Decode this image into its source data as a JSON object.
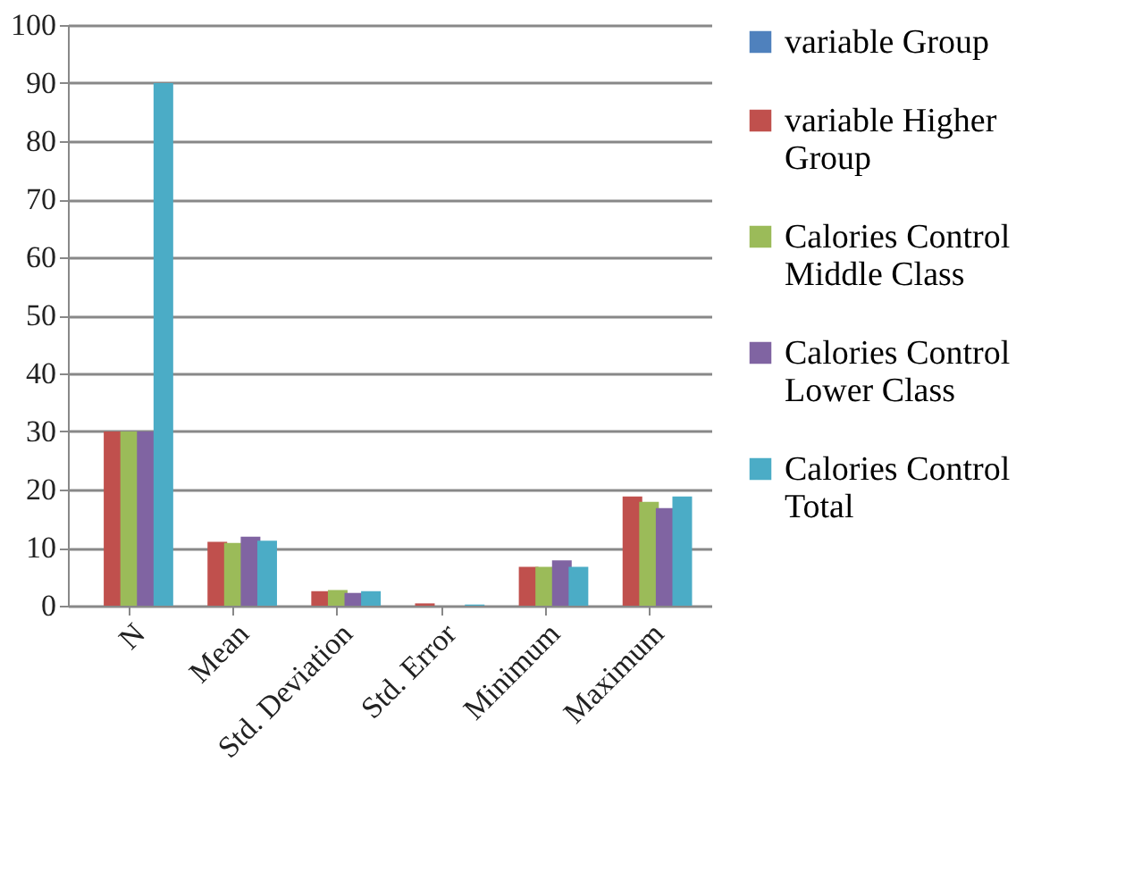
{
  "chart_data": {
    "type": "bar",
    "categories": [
      "N",
      "Mean",
      "Std. Deviation",
      "Std. Error",
      "Minimum",
      "Maximum"
    ],
    "series": [
      {
        "name": "variable Group",
        "color": "#4f81bd",
        "values": [
          null,
          null,
          null,
          null,
          null,
          null
        ]
      },
      {
        "name": "variable Higher Group",
        "color": "#c0504d",
        "values": [
          30,
          11,
          2.5,
          0.4,
          6.7,
          18.8
        ]
      },
      {
        "name": "Calories Control Middle Class",
        "color": "#9bbb59",
        "values": [
          30,
          10.8,
          2.7,
          null,
          6.7,
          17.9
        ]
      },
      {
        "name": "Calories Control Lower Class",
        "color": "#8064a2",
        "values": [
          30,
          11.9,
          2.2,
          null,
          7.8,
          16.8
        ]
      },
      {
        "name": "Calories Control Total",
        "color": "#4bacc6",
        "values": [
          90,
          11.2,
          2.5,
          0.2,
          6.7,
          18.8
        ]
      }
    ],
    "ylim": [
      0,
      100
    ],
    "yticks": [
      0,
      10,
      20,
      30,
      40,
      50,
      60,
      70,
      80,
      90,
      100
    ],
    "grid": "y",
    "legend": "right"
  }
}
